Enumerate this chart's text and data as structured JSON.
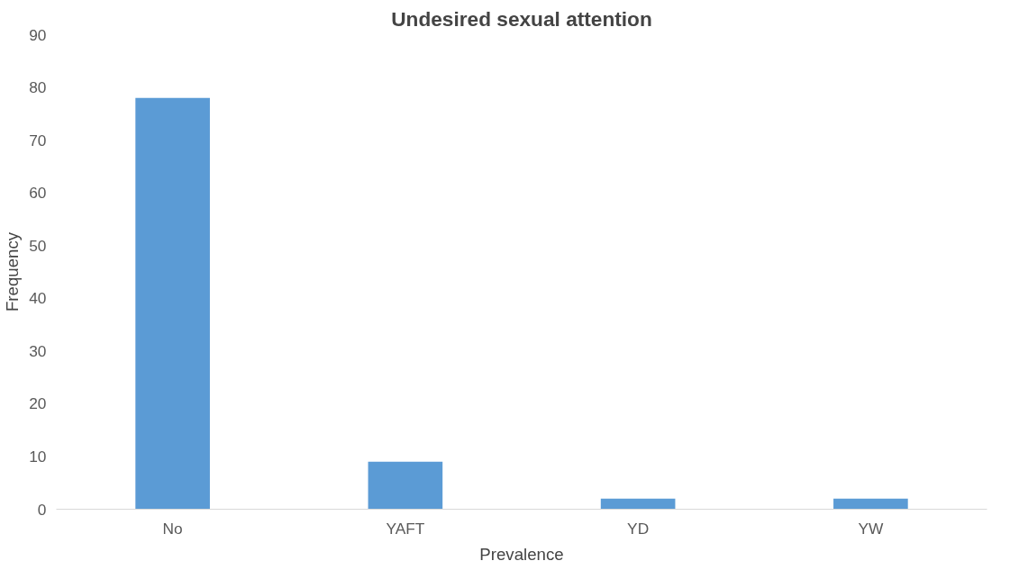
{
  "chart_data": {
    "type": "bar",
    "title": "Undesired sexual attention",
    "xlabel": "Prevalence",
    "ylabel": "Frequency",
    "categories": [
      "No",
      "YAFT",
      "YD",
      "YW"
    ],
    "values": [
      78,
      9,
      2,
      2
    ],
    "color": "#5b9bd5",
    "ylim": [
      0,
      90
    ],
    "yticks": [
      0,
      10,
      20,
      30,
      40,
      50,
      60,
      70,
      80,
      90
    ],
    "grid": false
  }
}
